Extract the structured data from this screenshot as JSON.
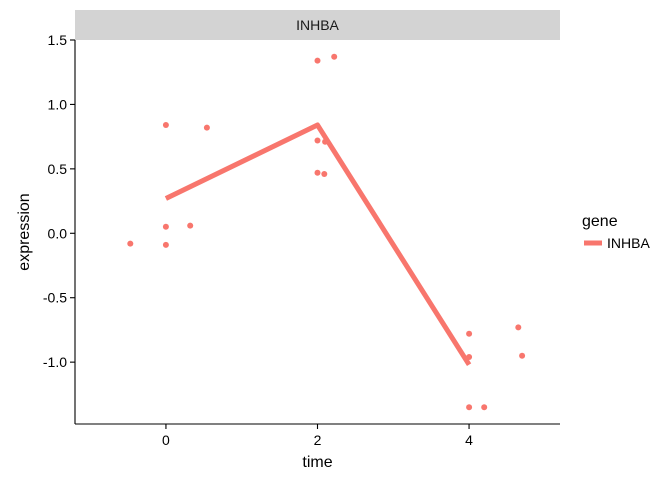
{
  "chart_data": {
    "type": "scatter",
    "facet_label": "INHBA",
    "xlabel": "time",
    "ylabel": "expression",
    "xlim": [
      -1.2,
      5.2
    ],
    "ylim": [
      -1.48,
      1.5
    ],
    "x_ticks": [
      0,
      2,
      4
    ],
    "x_tick_labels": [
      "0",
      "2",
      "4"
    ],
    "y_ticks": [
      1.5,
      1.0,
      0.5,
      0.0,
      -0.5,
      -1.0
    ],
    "y_tick_labels": [
      "1.5",
      "1.0",
      "0.5",
      "0.0",
      "-0.5",
      "-1.0"
    ],
    "grid": false,
    "legend": {
      "position": "right",
      "title": "gene",
      "entries": [
        "INHBA"
      ]
    },
    "color": "#F8766D",
    "series": [
      {
        "name": "INHBA",
        "points": [
          {
            "x": -0.47,
            "y": -0.08
          },
          {
            "x": 0.0,
            "y": 0.84
          },
          {
            "x": 0.0,
            "y": 0.05
          },
          {
            "x": 0.0,
            "y": -0.09
          },
          {
            "x": 0.32,
            "y": 0.06
          },
          {
            "x": 0.54,
            "y": 0.82
          },
          {
            "x": 2.0,
            "y": 1.34
          },
          {
            "x": 2.22,
            "y": 1.37
          },
          {
            "x": 2.0,
            "y": 0.72
          },
          {
            "x": 2.1,
            "y": 0.71
          },
          {
            "x": 2.0,
            "y": 0.47
          },
          {
            "x": 2.09,
            "y": 0.46
          },
          {
            "x": 4.0,
            "y": -0.78
          },
          {
            "x": 4.0,
            "y": -0.96
          },
          {
            "x": 4.0,
            "y": -1.35
          },
          {
            "x": 4.2,
            "y": -1.35
          },
          {
            "x": 4.65,
            "y": -0.73
          },
          {
            "x": 4.7,
            "y": -0.95
          }
        ],
        "trend_line": [
          {
            "x": 0,
            "y": 0.27
          },
          {
            "x": 2,
            "y": 0.84
          },
          {
            "x": 4,
            "y": -1.02
          }
        ]
      }
    ]
  }
}
